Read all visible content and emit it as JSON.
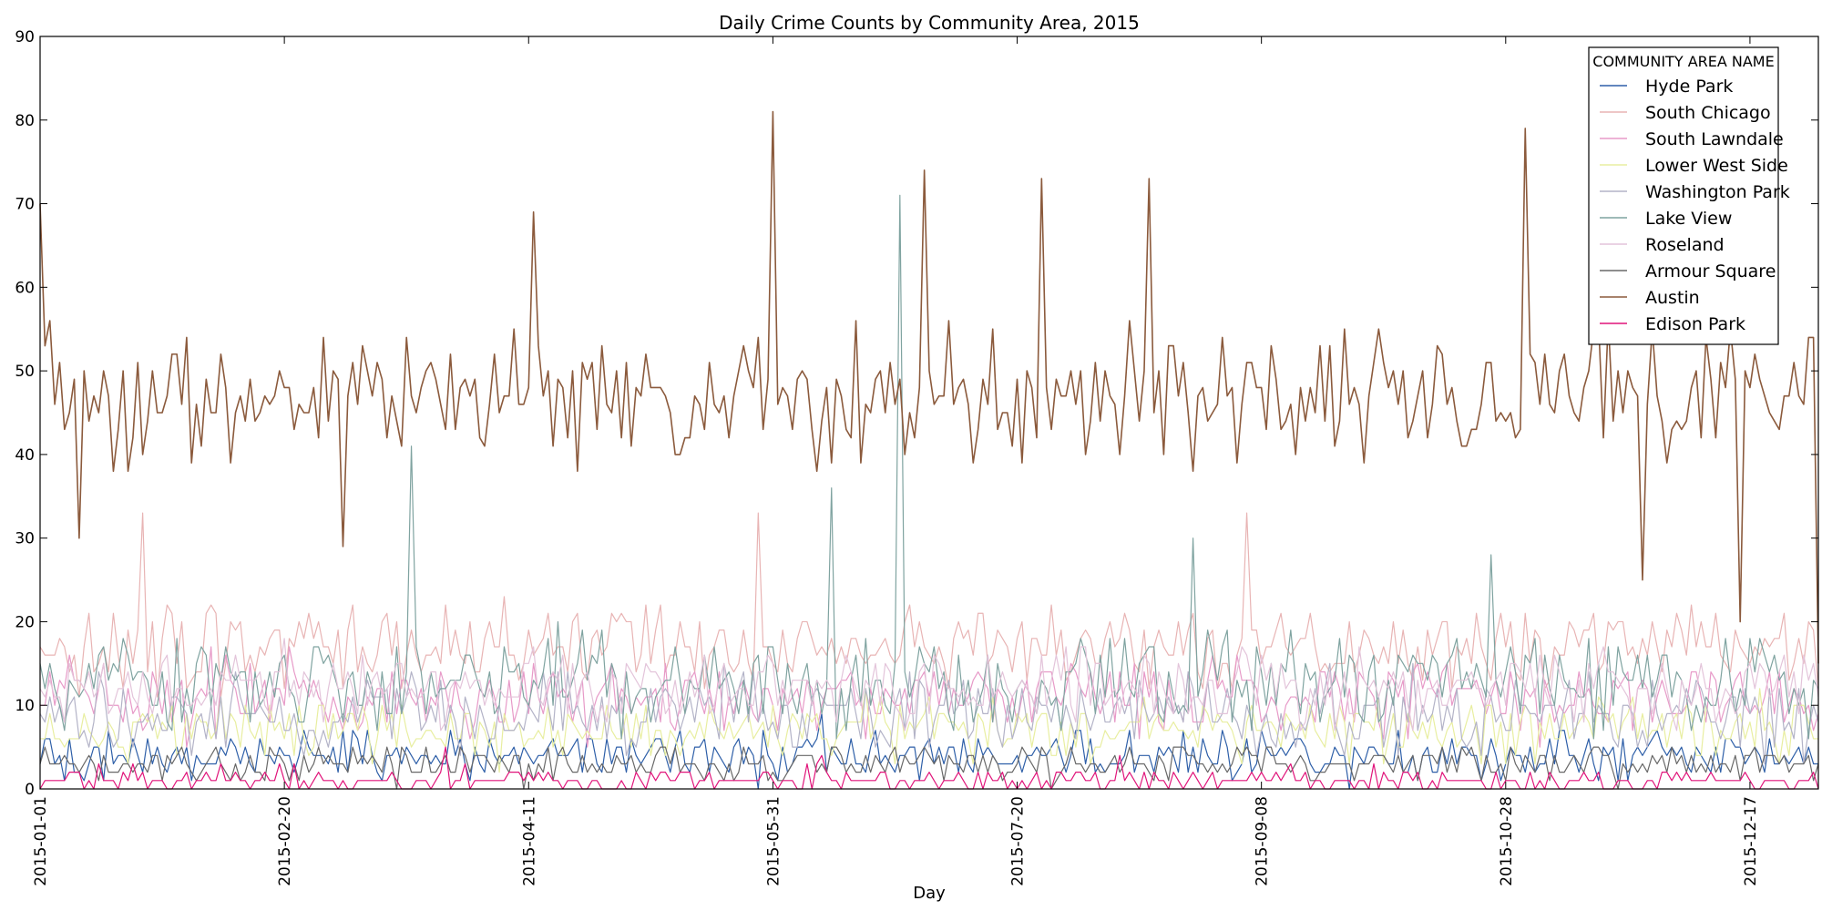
{
  "chart_data": {
    "type": "line",
    "title": "Daily Crime Counts by Community Area, 2015",
    "xlabel": "Day",
    "ylabel": "",
    "x_start": "2015-01-01",
    "x_end": "2015-12-31",
    "x_ticks": [
      "2015-01-01",
      "2015-02-20",
      "2015-04-11",
      "2015-05-31",
      "2015-07-20",
      "2015-09-08",
      "2015-10-28",
      "2015-12-17"
    ],
    "ylim": [
      0,
      90
    ],
    "y_ticks": [
      0,
      10,
      20,
      30,
      40,
      50,
      60,
      70,
      80,
      90
    ],
    "grid": false,
    "legend": {
      "title": "COMMUNITY AREA NAME",
      "placement": "top-right"
    },
    "series": [
      {
        "name": "Hyde Park",
        "color": "#2e5fa8",
        "typical": 4,
        "spread": 2.5,
        "baseline": 0,
        "points": [
          [
            "2015-01-01",
            3
          ],
          [
            "2015-02-15",
            6
          ],
          [
            "2015-04-20",
            5
          ],
          [
            "2015-06-10",
            9
          ],
          [
            "2015-08-01",
            7
          ],
          [
            "2015-09-15",
            6
          ],
          [
            "2015-11-10",
            4
          ],
          [
            "2015-12-31",
            3
          ]
        ]
      },
      {
        "name": "South Chicago",
        "color": "#e8b4b4",
        "typical": 17,
        "spread": 4.5,
        "baseline": 0,
        "points": [
          [
            "2015-01-01",
            17
          ],
          [
            "2015-01-22",
            33
          ],
          [
            "2015-03-05",
            19
          ],
          [
            "2015-05-28",
            33
          ],
          [
            "2015-09-05",
            33
          ],
          [
            "2015-10-28",
            17
          ],
          [
            "2015-12-31",
            12
          ]
        ]
      },
      {
        "name": "South Lawndale",
        "color": "#e79ac8",
        "typical": 11,
        "spread": 4,
        "baseline": 0,
        "points": [
          [
            "2015-01-01",
            10
          ],
          [
            "2015-04-01",
            12
          ],
          [
            "2015-07-01",
            14
          ],
          [
            "2015-10-01",
            11
          ],
          [
            "2015-12-31",
            9
          ]
        ]
      },
      {
        "name": "Lower West Side",
        "color": "#e8eea0",
        "typical": 7,
        "spread": 3.5,
        "baseline": 0,
        "points": [
          [
            "2015-01-01",
            6
          ],
          [
            "2015-04-01",
            8
          ],
          [
            "2015-07-01",
            9
          ],
          [
            "2015-10-01",
            7
          ],
          [
            "2015-12-31",
            6
          ]
        ]
      },
      {
        "name": "Washington Park",
        "color": "#b3b3c7",
        "typical": 9,
        "spread": 4,
        "baseline": 0,
        "points": [
          [
            "2015-01-01",
            9
          ],
          [
            "2015-04-01",
            10
          ],
          [
            "2015-07-01",
            12
          ],
          [
            "2015-10-01",
            10
          ],
          [
            "2015-12-31",
            8
          ]
        ]
      },
      {
        "name": "Lake View",
        "color": "#7fa3a0",
        "typical": 13,
        "spread": 5,
        "baseline": 0,
        "points": [
          [
            "2015-01-01",
            15
          ],
          [
            "2015-03-18",
            41
          ],
          [
            "2015-06-12",
            36
          ],
          [
            "2015-06-26",
            71
          ],
          [
            "2015-08-25",
            30
          ],
          [
            "2015-10-25",
            28
          ],
          [
            "2015-12-31",
            12
          ]
        ]
      },
      {
        "name": "Roseland",
        "color": "#e3c4da",
        "typical": 12,
        "spread": 4,
        "baseline": 0,
        "points": [
          [
            "2015-01-01",
            12
          ],
          [
            "2015-04-01",
            13
          ],
          [
            "2015-07-01",
            15
          ],
          [
            "2015-10-01",
            13
          ],
          [
            "2015-12-31",
            11
          ]
        ]
      },
      {
        "name": "Armour Square",
        "color": "#686868",
        "typical": 3,
        "spread": 2,
        "baseline": 0,
        "points": [
          [
            "2015-01-01",
            3
          ],
          [
            "2015-04-01",
            4
          ],
          [
            "2015-07-01",
            5
          ],
          [
            "2015-10-01",
            4
          ],
          [
            "2015-12-31",
            3
          ]
        ]
      },
      {
        "name": "Austin",
        "color": "#8b5a3c",
        "typical": 47,
        "spread": 7,
        "baseline": 0,
        "points": [
          [
            "2015-01-01",
            70
          ],
          [
            "2015-01-09",
            30
          ],
          [
            "2015-03-04",
            29
          ],
          [
            "2015-04-12",
            69
          ],
          [
            "2015-05-31",
            81
          ],
          [
            "2015-07-01",
            74
          ],
          [
            "2015-07-25",
            73
          ],
          [
            "2015-08-16",
            73
          ],
          [
            "2015-11-01",
            79
          ],
          [
            "2015-11-25",
            25
          ],
          [
            "2015-12-15",
            20
          ],
          [
            "2015-12-31",
            15
          ]
        ]
      },
      {
        "name": "Edison Park",
        "color": "#e0147a",
        "typical": 1,
        "spread": 1.2,
        "baseline": 0,
        "points": [
          [
            "2015-01-01",
            0
          ],
          [
            "2015-03-25",
            5
          ],
          [
            "2015-06-10",
            4
          ],
          [
            "2015-08-10",
            4
          ],
          [
            "2015-12-31",
            0
          ]
        ]
      }
    ]
  }
}
